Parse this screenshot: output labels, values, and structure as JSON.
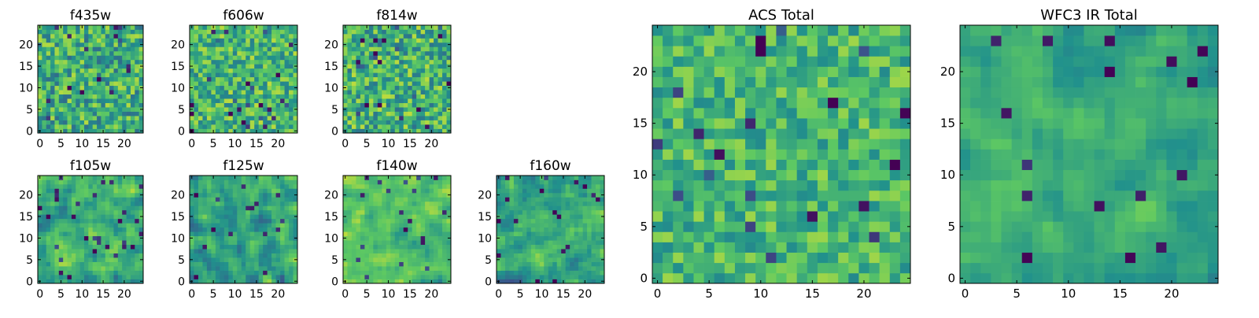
{
  "figure": {
    "background": "#ffffff"
  },
  "colormap": {
    "name": "viridis",
    "stops": [
      "#440154",
      "#3b528b",
      "#21918c",
      "#5ec962",
      "#fde725"
    ]
  },
  "chart_data": [
    {
      "type": "heatmap",
      "title": "f435w",
      "grid_size": 25,
      "xticks": [
        0,
        5,
        10,
        15,
        20
      ],
      "yticks": [
        0,
        5,
        10,
        15,
        20
      ],
      "xlim": [
        0,
        25
      ],
      "ylim": [
        0,
        25
      ],
      "value_range": [
        0,
        1
      ],
      "level_center": 0.62,
      "noise": 0.22,
      "smooth": 0,
      "seed": 11
    },
    {
      "type": "heatmap",
      "title": "f606w",
      "grid_size": 25,
      "xticks": [
        0,
        5,
        10,
        15,
        20
      ],
      "yticks": [
        0,
        5,
        10,
        15,
        20
      ],
      "xlim": [
        0,
        25
      ],
      "ylim": [
        0,
        25
      ],
      "value_range": [
        0,
        1
      ],
      "level_center": 0.66,
      "noise": 0.2,
      "smooth": 0,
      "seed": 23
    },
    {
      "type": "heatmap",
      "title": "f814w",
      "grid_size": 25,
      "xticks": [
        0,
        5,
        10,
        15,
        20
      ],
      "yticks": [
        0,
        5,
        10,
        15,
        20
      ],
      "xlim": [
        0,
        25
      ],
      "ylim": [
        0,
        25
      ],
      "value_range": [
        0,
        1
      ],
      "level_center": 0.64,
      "noise": 0.22,
      "smooth": 0,
      "seed": 37
    },
    {
      "type": "heatmap",
      "title": "ACS Total",
      "grid_size": 25,
      "xticks": [
        0,
        5,
        10,
        15,
        20
      ],
      "yticks": [
        0,
        5,
        10,
        15,
        20
      ],
      "xlim": [
        0,
        25
      ],
      "ylim": [
        0,
        25
      ],
      "value_range": [
        0,
        1
      ],
      "level_center": 0.66,
      "noise": 0.16,
      "smooth": 0,
      "seed": 41
    },
    {
      "type": "heatmap",
      "title": "WFC3 IR Total",
      "grid_size": 25,
      "xticks": [
        0,
        5,
        10,
        15,
        20
      ],
      "yticks": [
        0,
        5,
        10,
        15,
        20
      ],
      "xlim": [
        0,
        25
      ],
      "ylim": [
        0,
        25
      ],
      "value_range": [
        0,
        1
      ],
      "level_center": 0.6,
      "noise": 0.14,
      "smooth": 1,
      "seed": 53
    },
    {
      "type": "heatmap",
      "title": "f105w",
      "grid_size": 25,
      "xticks": [
        0,
        5,
        10,
        15,
        20
      ],
      "yticks": [
        0,
        5,
        10,
        15,
        20
      ],
      "xlim": [
        0,
        25
      ],
      "ylim": [
        0,
        25
      ],
      "value_range": [
        0,
        1
      ],
      "level_center": 0.62,
      "noise": 0.22,
      "smooth": 1,
      "seed": 67
    },
    {
      "type": "heatmap",
      "title": "f125w",
      "grid_size": 25,
      "xticks": [
        0,
        5,
        10,
        15,
        20
      ],
      "yticks": [
        0,
        5,
        10,
        15,
        20
      ],
      "xlim": [
        0,
        25
      ],
      "ylim": [
        0,
        25
      ],
      "value_range": [
        0,
        1
      ],
      "level_center": 0.56,
      "noise": 0.24,
      "smooth": 1,
      "seed": 79
    },
    {
      "type": "heatmap",
      "title": "f140w",
      "grid_size": 25,
      "xticks": [
        0,
        5,
        10,
        15,
        20
      ],
      "yticks": [
        0,
        5,
        10,
        15,
        20
      ],
      "xlim": [
        0,
        25
      ],
      "ylim": [
        0,
        25
      ],
      "value_range": [
        0,
        1
      ],
      "level_center": 0.66,
      "noise": 0.2,
      "smooth": 1,
      "seed": 83
    },
    {
      "type": "heatmap",
      "title": "f160w",
      "grid_size": 25,
      "xticks": [
        0,
        5,
        10,
        15,
        20
      ],
      "yticks": [
        0,
        5,
        10,
        15,
        20
      ],
      "xlim": [
        0,
        25
      ],
      "ylim": [
        0,
        25
      ],
      "value_range": [
        0,
        1
      ],
      "level_center": 0.54,
      "noise": 0.24,
      "smooth": 1,
      "seed": 97
    }
  ]
}
